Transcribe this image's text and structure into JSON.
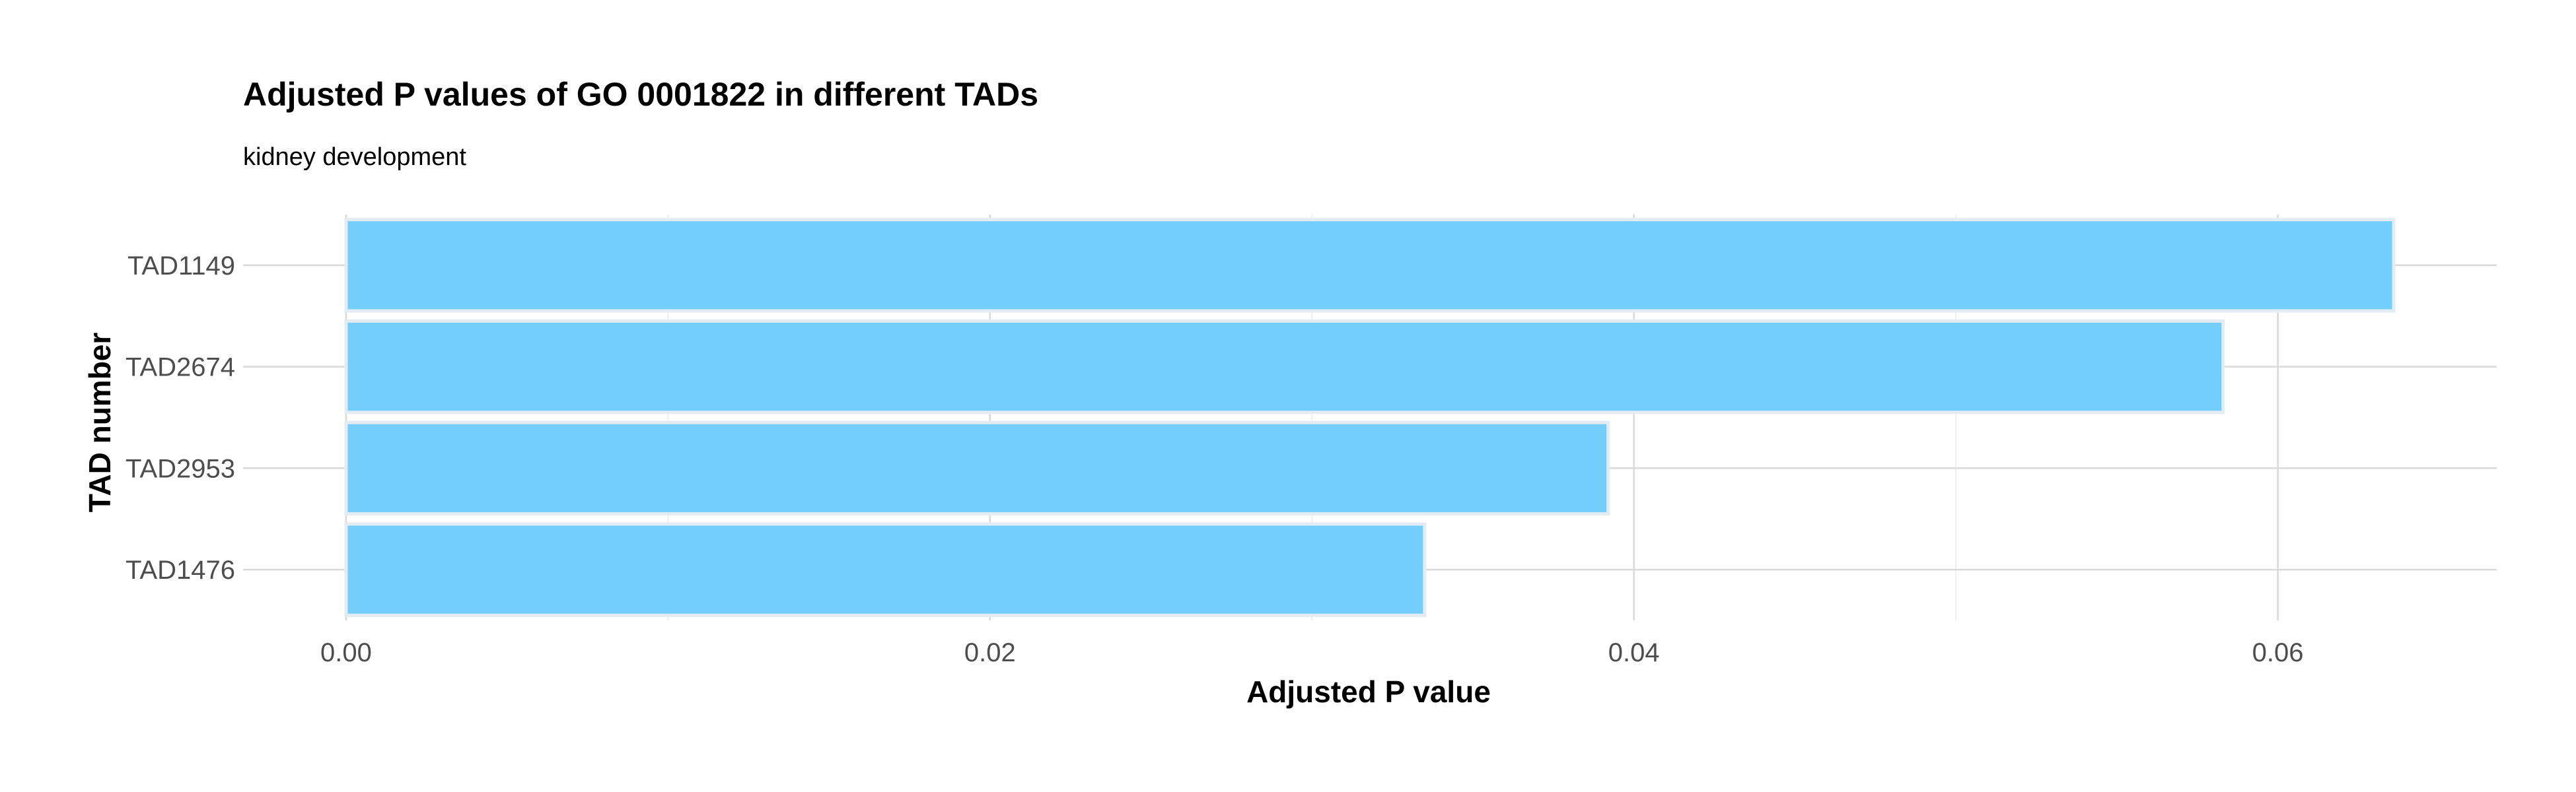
{
  "chart_data": {
    "type": "bar",
    "orientation": "horizontal",
    "title": "Adjusted P values of GO 0001822 in different TADs",
    "subtitle": "kidney development",
    "xlabel": "Adjusted P value",
    "ylabel": "TAD number",
    "categories": [
      "TAD1149",
      "TAD2674",
      "TAD2953",
      "TAD1476"
    ],
    "values": [
      0.0636,
      0.0583,
      0.0392,
      0.0335
    ],
    "xlim": [
      -0.0032,
      0.0668
    ],
    "x_ticks": [
      0.0,
      0.02,
      0.04,
      0.06
    ],
    "x_tick_labels": [
      "0.00",
      "0.02",
      "0.04",
      "0.06"
    ],
    "x_minor_ticks": [
      0.01,
      0.03,
      0.05
    ],
    "grid": true,
    "legend": "none",
    "colors": {
      "bar_fill": "#73CEFB",
      "bar_outline": "#E3ECF3",
      "grid_major": "#D9D9D9",
      "grid_minor": "#EBEBEB",
      "text": "#000000",
      "tick_text": "#4D4D4D"
    }
  }
}
